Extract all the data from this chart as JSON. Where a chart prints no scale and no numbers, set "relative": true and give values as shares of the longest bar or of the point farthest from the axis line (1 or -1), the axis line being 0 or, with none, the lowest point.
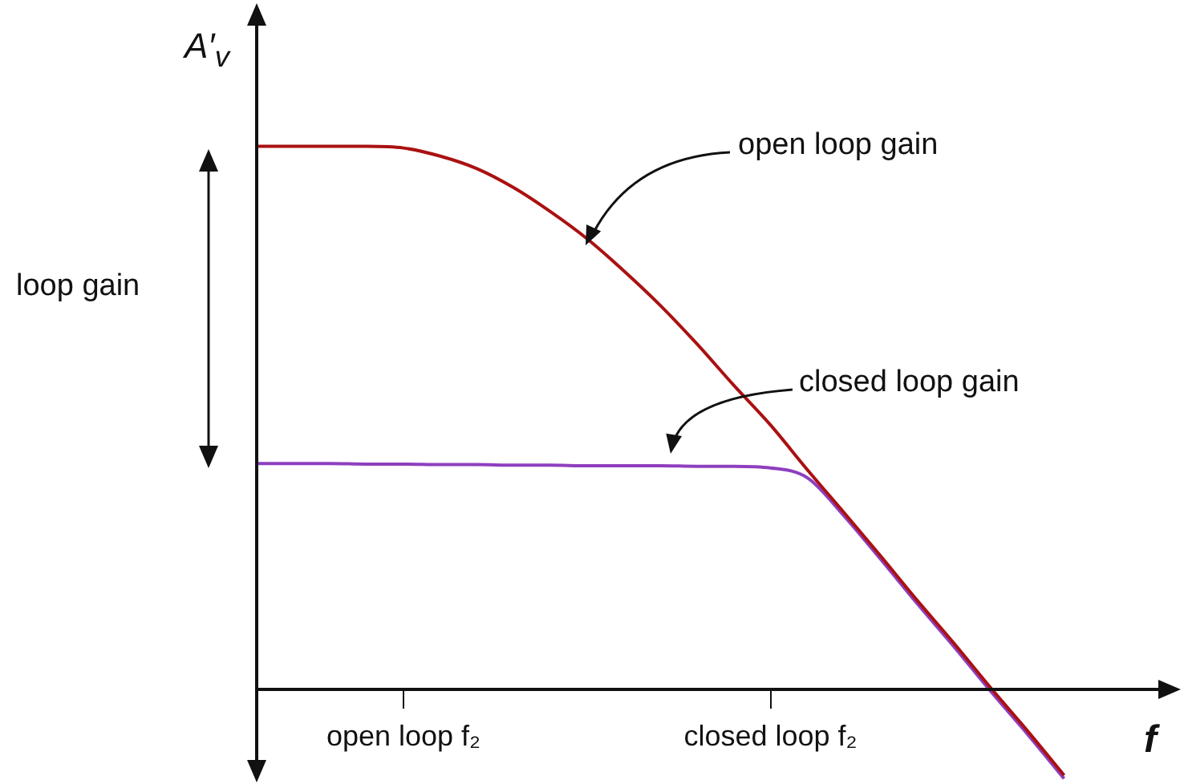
{
  "chart_data": {
    "type": "line",
    "relative": true,
    "xlabel": "f",
    "ylabel": "A′$_{v}$",
    "categories": [
      null,
      null,
      null,
      null,
      "open loop f₂",
      null,
      null,
      null,
      null,
      null,
      null,
      null,
      null,
      null,
      "closed loop f₂",
      null,
      null,
      null,
      null,
      null,
      null,
      null,
      null,
      null,
      null
    ],
    "series": [
      {
        "color": "#aa1111",
        "values": [
          1,
          1,
          1,
          1,
          0.997,
          0.982,
          0.959,
          0.924,
          0.88,
          0.83,
          0.771,
          0.707,
          0.636,
          0.56,
          0.487,
          0.405,
          0.326,
          0.246,
          0.164,
          0.085,
          0.003,
          -0.076,
          -0.158,
          null,
          null
        ]
      },
      {
        "color": "#8e3fbf",
        "values": [
          0.416,
          0.416,
          0.416,
          0.415,
          0.415,
          0.414,
          0.414,
          0.413,
          0.413,
          0.412,
          0.412,
          0.412,
          0.411,
          0.411,
          0.408,
          0.39,
          0.32,
          0.24,
          0.158,
          0.079,
          -0.003,
          -0.082,
          -0.164,
          null,
          null
        ]
      }
    ],
    "annotations": [
      "open loop gain",
      "closed loop gain",
      "loop gain"
    ]
  }
}
